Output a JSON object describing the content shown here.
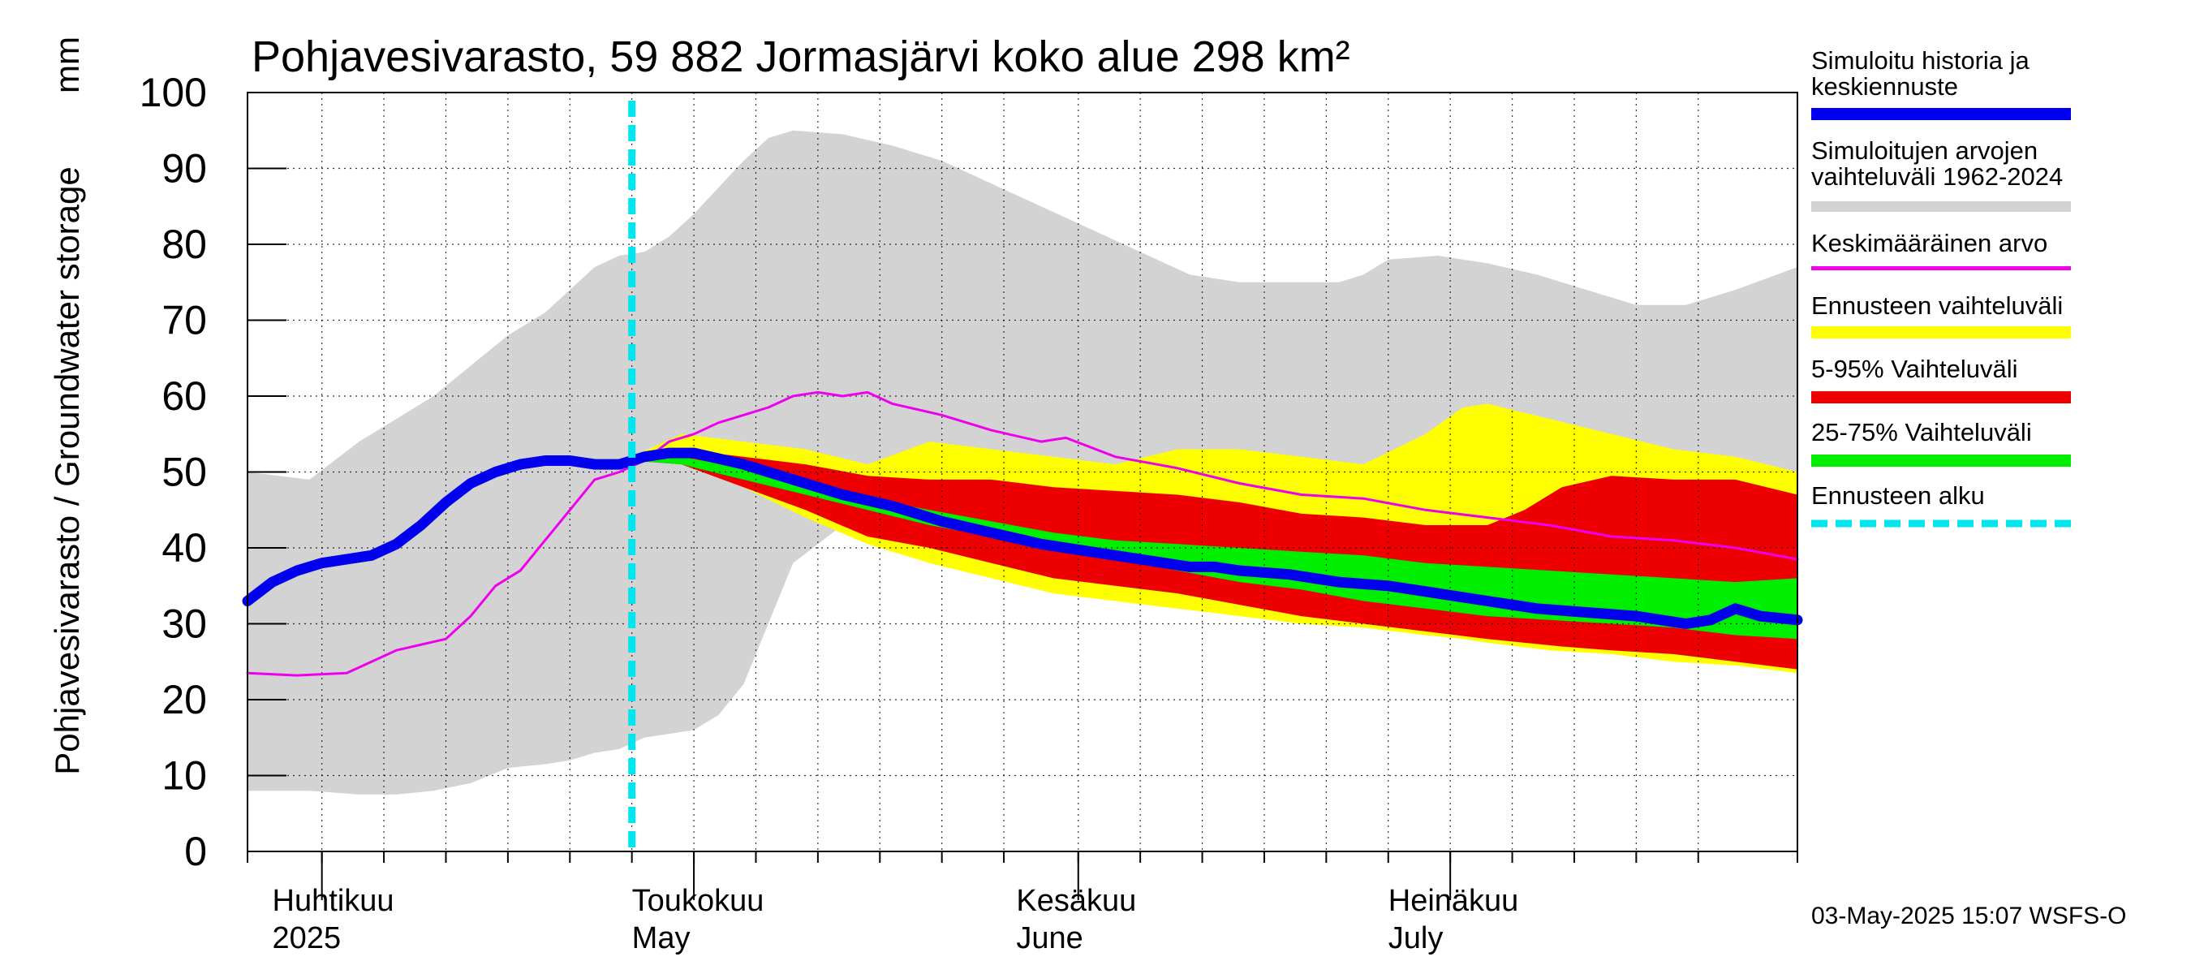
{
  "chart_data": {
    "type": "area",
    "title": "Pohjavesivarasto, 59 882 Jormasjärvi koko alue 298 km²",
    "ylabel": "Pohjavesivarasto / Groundwater storage",
    "yunit": "mm",
    "ylim": [
      0,
      100
    ],
    "yticks": [
      0,
      10,
      20,
      30,
      40,
      50,
      60,
      70,
      80,
      90,
      100
    ],
    "xlim": [
      0,
      125
    ],
    "x_unit": "days since 2025-03-26",
    "month_labels": [
      {
        "fi": "Huhtikuu",
        "en": "2025",
        "day": 2
      },
      {
        "fi": "Toukokuu",
        "en": "May",
        "day": 31
      },
      {
        "fi": "Kesäkuu",
        "en": "June",
        "day": 62
      },
      {
        "fi": "Heinäkuu",
        "en": "July",
        "day": 92
      }
    ],
    "month_boundaries": [
      6,
      36,
      67,
      97
    ],
    "week_ticks": [
      0,
      6,
      11,
      16,
      21,
      26,
      31,
      36,
      41,
      46,
      51,
      56,
      61,
      67,
      72,
      77,
      82,
      87,
      92,
      97,
      102,
      107,
      112,
      117,
      125
    ],
    "forecast_start_day": 31,
    "timestamp": "03-May-2025 15:07 WSFS-O",
    "legend": [
      {
        "label": "Simuloitu historia ja keskiennuste",
        "color": "#0000ee"
      },
      {
        "label": "Simuloitujen arvojen vaihteluväli 1962-2024",
        "color": "#d3d3d3"
      },
      {
        "label": "Keskimääräinen arvo",
        "color": "#ee00ee"
      },
      {
        "label": "Ennusteen vaihteluväli",
        "color": "#ffff00"
      },
      {
        "label": "5-95% Vaihteluväli",
        "color": "#ee0000"
      },
      {
        "label": "25-75% Vaihteluväli",
        "color": "#00ee00"
      },
      {
        "label": "Ennusteen alku",
        "color": "#00e5ee"
      }
    ],
    "series": [
      {
        "name": "hist_range",
        "type": "band",
        "color": "#d3d3d3",
        "x": [
          0,
          5,
          9,
          12,
          15,
          18,
          21,
          24,
          26,
          28,
          30,
          32,
          34,
          36,
          38,
          40,
          42,
          44,
          48,
          52,
          56,
          60,
          64,
          68,
          72,
          76,
          80,
          84,
          88,
          90,
          92,
          96,
          100,
          104,
          108,
          112,
          116,
          120,
          125
        ],
        "upper": [
          50,
          49,
          54,
          57,
          60,
          64,
          68,
          71,
          74,
          77,
          78.5,
          79,
          81,
          84,
          87.5,
          91,
          94,
          95,
          94.5,
          93,
          91,
          88,
          85,
          82,
          79,
          76,
          75,
          75,
          75,
          76,
          78,
          78.5,
          77.5,
          76,
          74,
          72,
          72,
          74,
          77
        ],
        "lower": [
          8,
          8,
          7.5,
          7.5,
          8,
          9,
          11,
          11.5,
          12,
          13,
          13.5,
          15,
          15.5,
          16,
          18,
          22,
          30,
          38,
          43,
          45,
          46,
          46,
          44,
          42,
          41,
          40,
          40,
          39,
          38,
          37.5,
          37,
          35,
          33,
          32,
          30,
          29,
          28,
          27.5,
          27
        ]
      },
      {
        "name": "forecast_range",
        "type": "band",
        "color": "#ffff00",
        "x": [
          31,
          35,
          40,
          45,
          50,
          55,
          60,
          65,
          70,
          75,
          80,
          85,
          90,
          95,
          98,
          100,
          105,
          110,
          115,
          120,
          125
        ],
        "upper": [
          52,
          55,
          54,
          53,
          51,
          54,
          53,
          52,
          51,
          53,
          53,
          52,
          51,
          55,
          58.5,
          59,
          57,
          55,
          53,
          52,
          50
        ],
        "lower": [
          51.5,
          51,
          48,
          44,
          40.5,
          38,
          36,
          34,
          33,
          32,
          31,
          30,
          29.5,
          28.5,
          28,
          27.5,
          26.5,
          26,
          25,
          24.5,
          23.5
        ]
      },
      {
        "name": "p5_p95",
        "type": "band",
        "color": "#ee0000",
        "x": [
          31,
          35,
          40,
          45,
          50,
          55,
          60,
          65,
          70,
          75,
          80,
          85,
          90,
          95,
          100,
          103,
          106,
          110,
          115,
          120,
          125
        ],
        "upper": [
          52,
          53,
          52,
          51,
          49.5,
          49,
          49,
          48,
          47.5,
          47,
          46,
          44.5,
          44,
          43,
          43,
          45,
          48,
          49.5,
          49,
          49,
          47
        ],
        "lower": [
          51.5,
          51,
          48,
          45,
          41.5,
          40,
          38,
          36,
          35,
          34,
          32.5,
          31,
          30,
          29,
          28,
          27.5,
          27,
          26.5,
          26,
          25,
          24
        ]
      },
      {
        "name": "p25_p75",
        "type": "band",
        "color": "#00ee00",
        "x": [
          31,
          35,
          40,
          45,
          50,
          55,
          60,
          65,
          70,
          75,
          80,
          85,
          90,
          95,
          100,
          105,
          110,
          115,
          120,
          125
        ],
        "upper": [
          52,
          52,
          50.5,
          48.5,
          46.5,
          45,
          43.5,
          42,
          41,
          40.5,
          40,
          39.5,
          39,
          38,
          37.5,
          37,
          36.5,
          36,
          35.5,
          36
        ],
        "lower": [
          51.5,
          51,
          49,
          47,
          45,
          43,
          41.5,
          40,
          38.5,
          37,
          35.5,
          34.5,
          33,
          32,
          31,
          30.5,
          30,
          29.5,
          28.5,
          28
        ]
      },
      {
        "name": "Keskimääräinen arvo",
        "type": "line",
        "color": "#ee00ee",
        "x": [
          0,
          4,
          8,
          12,
          16,
          18,
          20,
          22,
          24,
          26,
          28,
          30,
          32,
          34,
          36,
          38,
          40,
          42,
          44,
          46,
          48,
          50,
          52,
          56,
          60,
          64,
          66,
          70,
          75,
          80,
          85,
          90,
          95,
          100,
          105,
          110,
          115,
          120,
          125
        ],
        "values": [
          23.5,
          23.2,
          23.5,
          26.5,
          28,
          31,
          35,
          37,
          41,
          45,
          49,
          50,
          51.5,
          54,
          55,
          56.5,
          57.5,
          58.5,
          60,
          60.5,
          60,
          60.5,
          59,
          57.5,
          55.5,
          54,
          54.5,
          52,
          50.5,
          48.5,
          47,
          46.5,
          45,
          44,
          43,
          41.5,
          41,
          40,
          38.5
        ]
      },
      {
        "name": "Simuloitu historia ja keskiennuste",
        "type": "line",
        "color": "#0000ee",
        "x": [
          0,
          2,
          4,
          6,
          8,
          10,
          12,
          14,
          16,
          18,
          20,
          22,
          24,
          26,
          28,
          30,
          32,
          34,
          36,
          40,
          44,
          48,
          52,
          56,
          60,
          64,
          68,
          72,
          76,
          78,
          80,
          84,
          88,
          92,
          96,
          100,
          104,
          108,
          112,
          116,
          118,
          120,
          122,
          125
        ],
        "values": [
          33,
          35.5,
          37,
          38,
          38.5,
          39,
          40.5,
          43,
          46,
          48.5,
          50,
          51,
          51.5,
          51.5,
          51,
          51,
          52,
          52.5,
          52.5,
          51,
          49,
          47,
          45.5,
          43.5,
          42,
          40.5,
          39.5,
          38.5,
          37.5,
          37.5,
          37,
          36.5,
          35.5,
          35,
          34,
          33,
          32,
          31.5,
          31,
          30,
          30.5,
          32,
          31,
          30.5
        ]
      }
    ]
  }
}
